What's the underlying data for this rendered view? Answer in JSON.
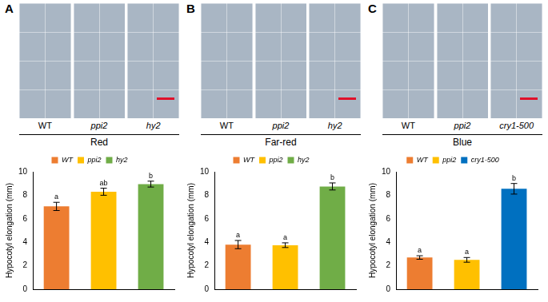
{
  "panels": [
    {
      "letter": "A",
      "photo_labels": [
        "WT",
        "ppi2",
        "hy2"
      ],
      "condition": "Red"
    },
    {
      "letter": "B",
      "photo_labels": [
        "WT",
        "ppi2",
        "hy2"
      ],
      "condition": "Far-red"
    },
    {
      "letter": "C",
      "photo_labels": [
        "WT",
        "ppi2",
        "cry1-500"
      ],
      "condition": "Blue"
    }
  ],
  "chart_data": [
    {
      "type": "bar",
      "ylabel": "Hypocotyl elongation (mm)",
      "categories": [
        "WT",
        "ppi2",
        "hy2"
      ],
      "values": [
        7.05,
        8.3,
        8.95
      ],
      "errors": [
        0.35,
        0.3,
        0.25
      ],
      "annotations": [
        "a",
        "ab",
        "b"
      ],
      "colors": [
        "#ed7d31",
        "#ffc000",
        "#70ad47"
      ],
      "ylim": [
        0,
        10
      ],
      "yticks": [
        0,
        2,
        4,
        6,
        8,
        10
      ],
      "grid": false,
      "legend": "top",
      "tick_labels": "y"
    },
    {
      "type": "bar",
      "ylabel": "Hypocotyl elongation (mm)",
      "categories": [
        "WT",
        "ppi2",
        "hy2"
      ],
      "values": [
        3.8,
        3.75,
        8.75
      ],
      "errors": [
        0.35,
        0.2,
        0.3
      ],
      "annotations": [
        "a",
        "a",
        "b"
      ],
      "colors": [
        "#ed7d31",
        "#ffc000",
        "#70ad47"
      ],
      "ylim": [
        0,
        10
      ],
      "yticks": [
        0,
        2,
        4,
        6,
        8,
        10
      ],
      "grid": false,
      "legend": "top",
      "tick_labels": "y"
    },
    {
      "type": "bar",
      "ylabel": "Hypocotyl elongation (mm)",
      "categories": [
        "WT",
        "ppi2",
        "cry1-500"
      ],
      "values": [
        2.7,
        2.5,
        8.55
      ],
      "errors": [
        0.15,
        0.2,
        0.45
      ],
      "annotations": [
        "a",
        "a",
        "b"
      ],
      "colors": [
        "#ed7d31",
        "#ffc000",
        "#0070c0"
      ],
      "ylim": [
        0,
        10
      ],
      "yticks": [
        0,
        2,
        4,
        6,
        8,
        10
      ],
      "grid": false,
      "legend": "top",
      "tick_labels": "y"
    }
  ]
}
